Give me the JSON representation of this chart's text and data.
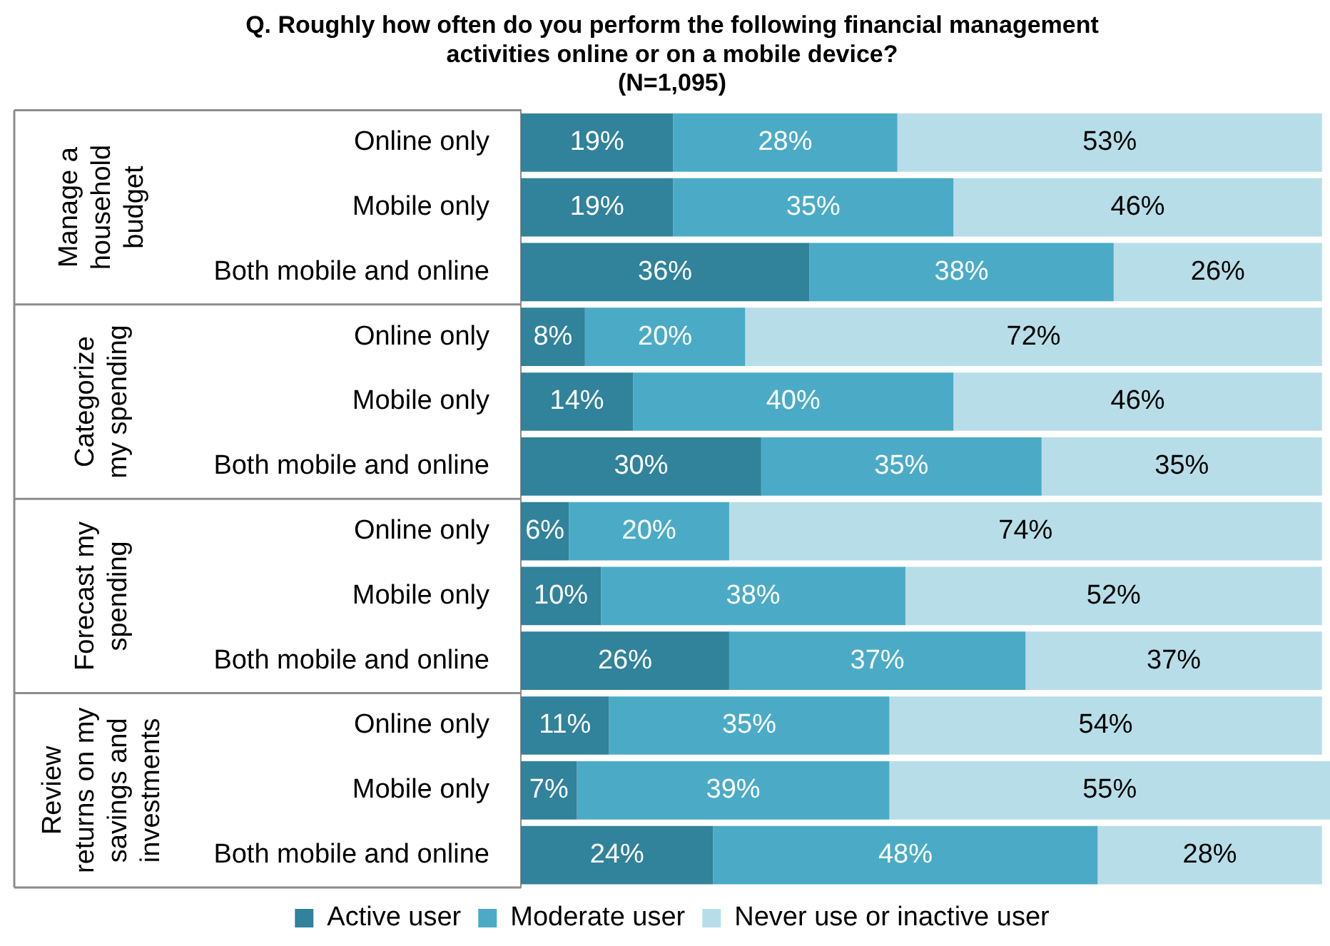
{
  "chart_data": {
    "type": "bar",
    "orientation": "horizontal",
    "stacked": true,
    "title": "Q. Roughly how often do you perform the following financial management activities online or on a mobile device?",
    "subtitle": "(N=1,095)",
    "categories": [
      "Online only",
      "Mobile only",
      "Both mobile and online",
      "Online only",
      "Mobile only",
      "Both mobile and online",
      "Online only",
      "Mobile only",
      "Both mobile and online",
      "Online only",
      "Mobile only",
      "Both mobile and online"
    ],
    "annotations": [
      "Manage a household budget",
      "Categorize my spending",
      "Forecast my spending",
      "Review returns on my savings and investments"
    ],
    "xlim": [
      0,
      101
    ],
    "tick_labels": "y",
    "legend": "bottom",
    "series": [
      {
        "name": "Active user",
        "color": "#31829b",
        "values": [
          19,
          19,
          36,
          8,
          14,
          30,
          6,
          10,
          26,
          11,
          7,
          24
        ],
        "value_labels": [
          "19%",
          "19%",
          "36%",
          "8%",
          "14%",
          "30%",
          "6%",
          "10%",
          "26%",
          "11%",
          "7%",
          "24%"
        ]
      },
      {
        "name": "Moderate user",
        "color": "#4babc6",
        "values": [
          28,
          35,
          38,
          20,
          40,
          35,
          20,
          38,
          37,
          35,
          39,
          48
        ],
        "value_labels": [
          "28%",
          "35%",
          "38%",
          "20%",
          "40%",
          "35%",
          "20%",
          "38%",
          "37%",
          "35%",
          "39%",
          "48%"
        ]
      },
      {
        "name": "Never use or inactive user",
        "color": "#b7dee8",
        "values": [
          53,
          46,
          26,
          72,
          46,
          35,
          74,
          52,
          37,
          54,
          55,
          28
        ],
        "value_labels": [
          "53%",
          "46%",
          "26%",
          "72%",
          "46%",
          "35%",
          "74%",
          "52%",
          "37%",
          "54%",
          "55%",
          "28%"
        ]
      }
    ]
  }
}
